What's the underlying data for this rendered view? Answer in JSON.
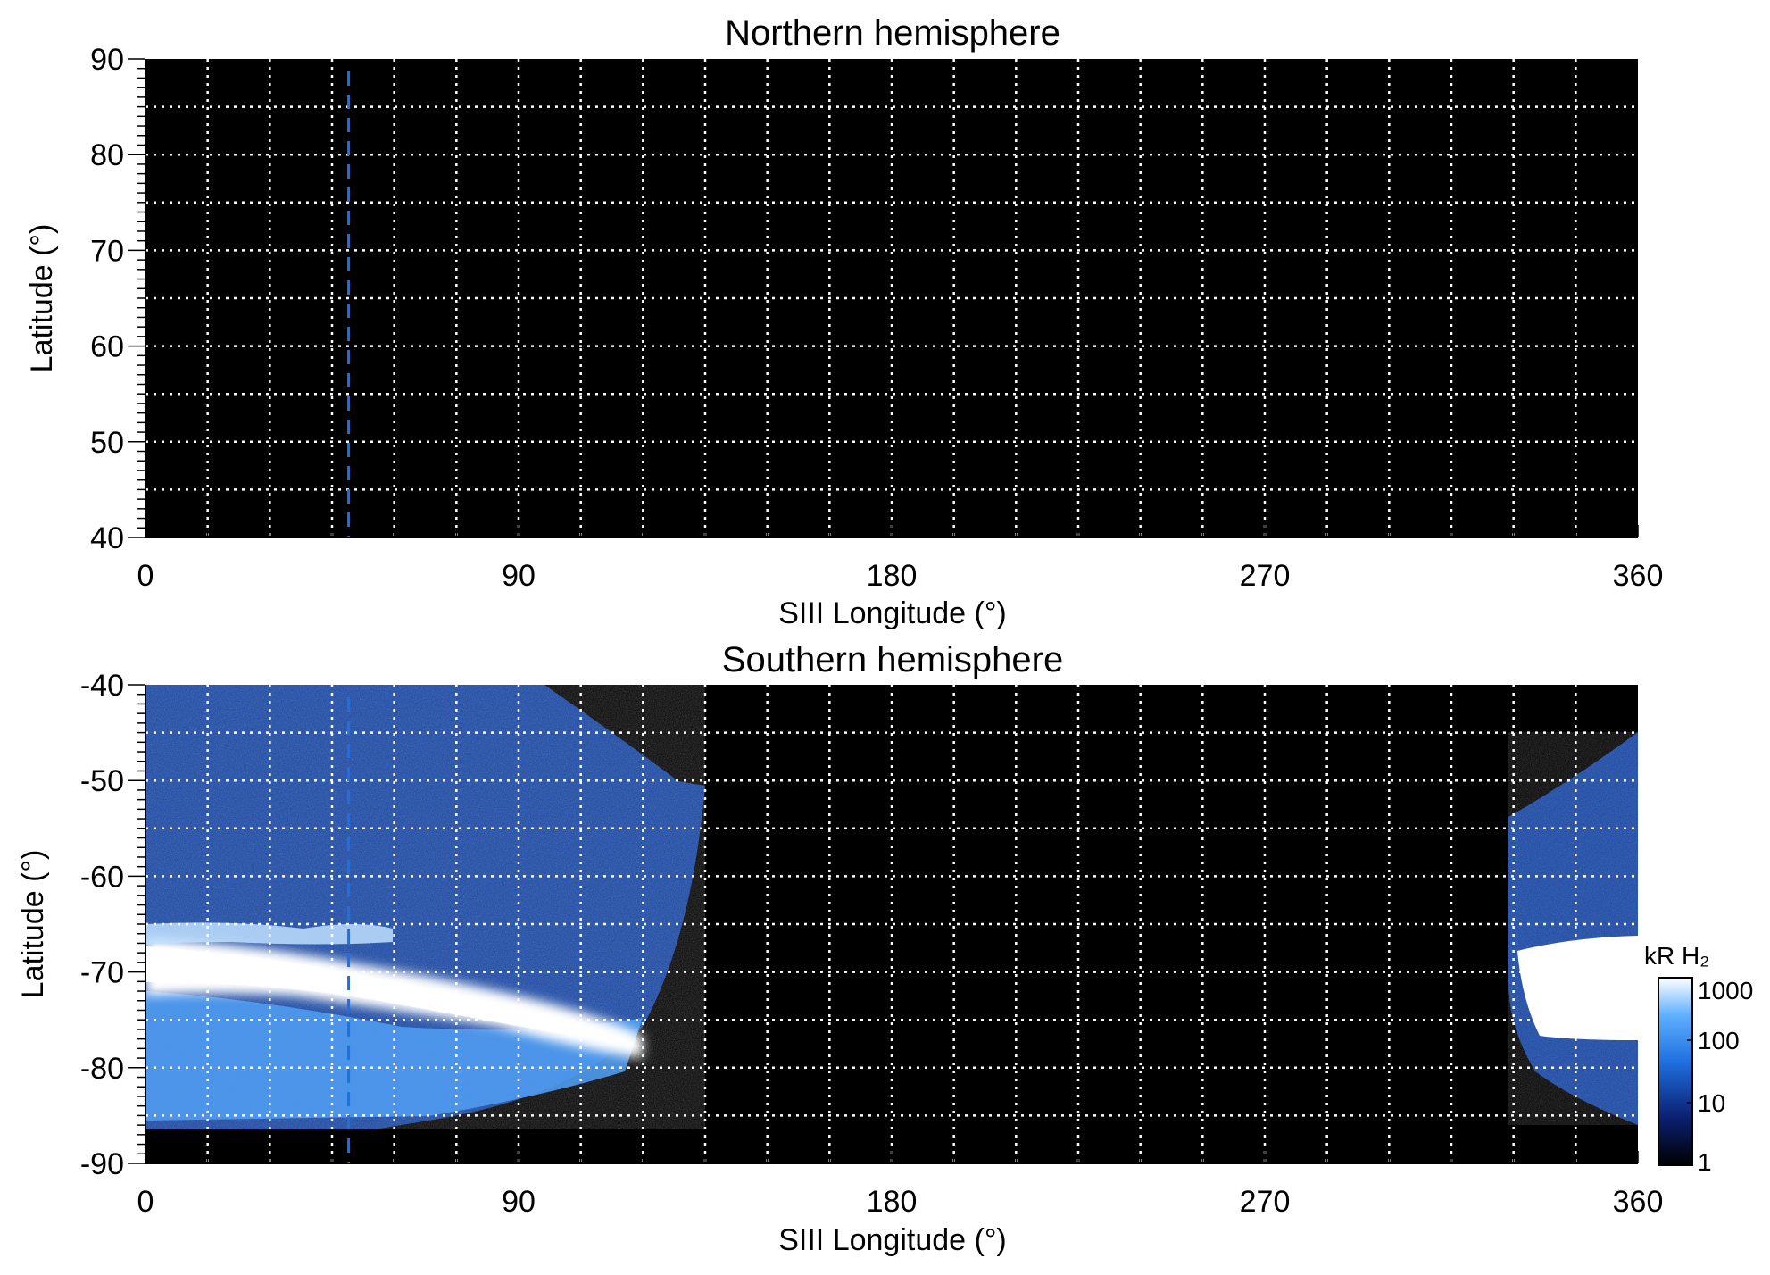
{
  "chart_data": [
    {
      "type": "heatmap",
      "title": "Northern hemisphere",
      "xlabel": "SIII Longitude (°)",
      "ylabel": "Latitude (°)",
      "xlim": [
        0,
        360
      ],
      "ylim": [
        40,
        90
      ],
      "xticks": [
        0,
        90,
        180,
        270,
        360
      ],
      "yticks": [
        40,
        50,
        60,
        70,
        80,
        90
      ],
      "grid": true,
      "grid_x_step": 15,
      "grid_y_step": 5,
      "marker_longitude": 49,
      "emission": "none"
    },
    {
      "type": "heatmap",
      "title": "Southern hemisphere",
      "xlabel": "SIII Longitude (°)",
      "ylabel": "Latitude (°)",
      "xlim": [
        0,
        360
      ],
      "ylim": [
        -90,
        -40
      ],
      "xticks": [
        0,
        90,
        180,
        270,
        360
      ],
      "yticks": [
        -90,
        -80,
        -70,
        -60,
        -50,
        -40
      ],
      "grid": true,
      "grid_x_step": 15,
      "grid_y_step": 5,
      "marker_longitude": 49,
      "oval_center": [
        [
          0,
          -72
        ],
        [
          20,
          -71
        ],
        [
          40,
          -70
        ],
        [
          60,
          -70
        ],
        [
          80,
          -72
        ],
        [
          100,
          -74
        ],
        [
          115,
          -78
        ],
        [
          330,
          -74
        ],
        [
          360,
          -73
        ]
      ],
      "coverage": [
        {
          "lon_range": [
            0,
            135
          ],
          "lat_range": [
            -87,
            -40
          ]
        },
        {
          "lon_range": [
            327,
            360
          ],
          "lat_range": [
            -85,
            -45
          ]
        }
      ]
    }
  ],
  "colorbar": {
    "label": "kR H₂",
    "ticks": [
      "1000",
      "100",
      "10",
      "1"
    ],
    "scale": "log",
    "range": [
      1,
      1000
    ],
    "colors": [
      "#000000",
      "#0a1f6e",
      "#1f6fe0",
      "#5fb0ff",
      "#ffffff"
    ]
  }
}
